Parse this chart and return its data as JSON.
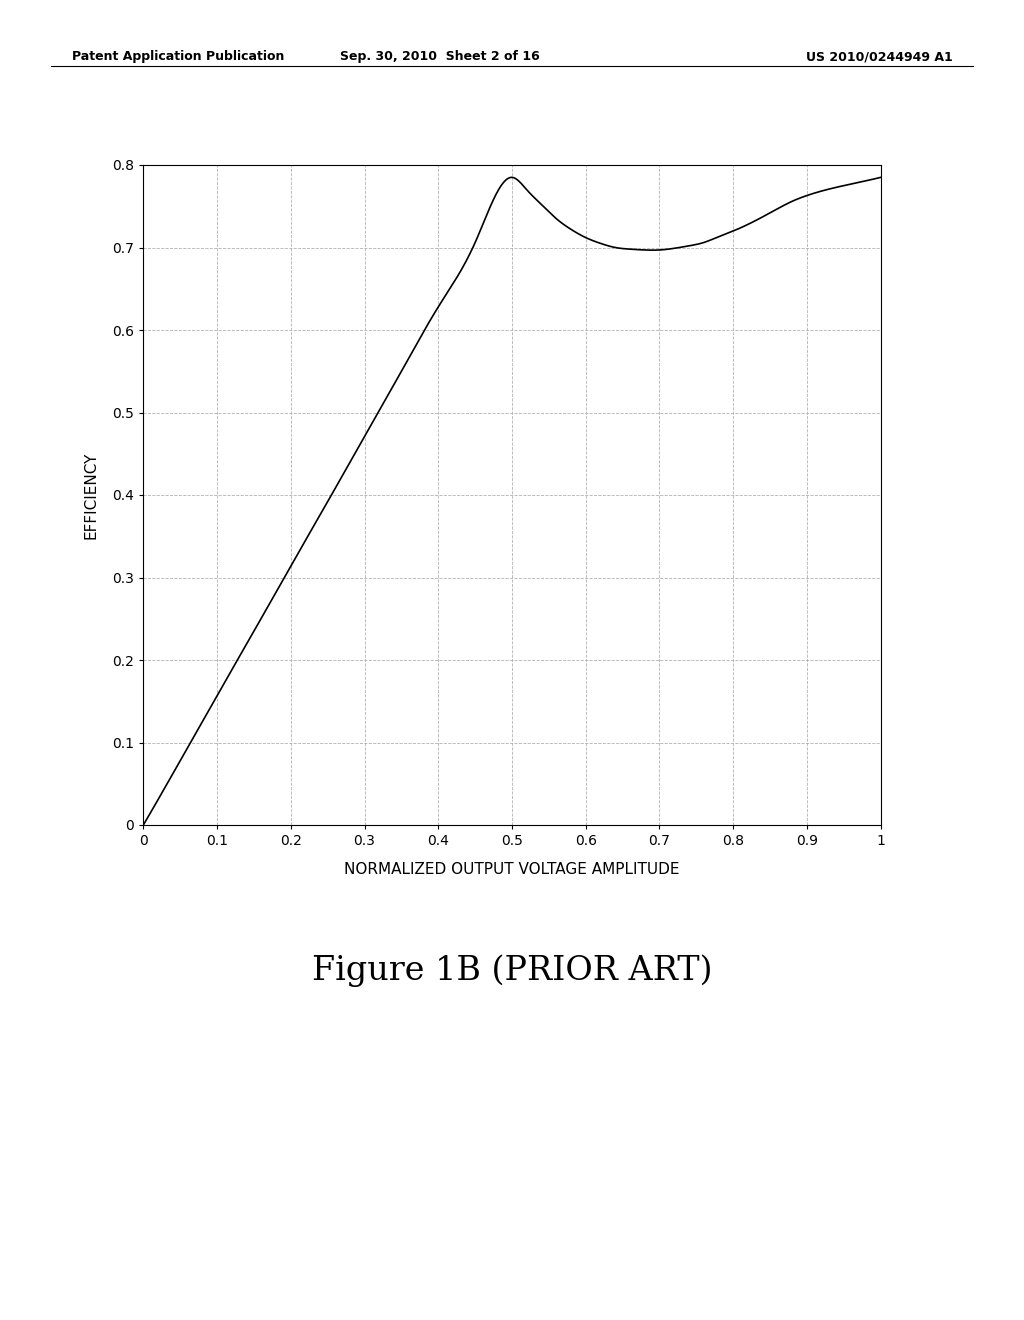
{
  "header_left": "Patent Application Publication",
  "header_mid": "Sep. 30, 2010  Sheet 2 of 16",
  "header_right": "US 2010/0244949 A1",
  "xlabel": "NORMALIZED OUTPUT VOLTAGE AMPLITUDE",
  "ylabel": "EFFICIENCY",
  "figure_label": "Figure 1B (PRIOR ART)",
  "xlim": [
    0,
    1
  ],
  "ylim": [
    0,
    0.8
  ],
  "xticks": [
    0,
    0.1,
    0.2,
    0.3,
    0.4,
    0.5,
    0.6,
    0.7,
    0.8,
    0.9,
    1
  ],
  "yticks": [
    0,
    0.1,
    0.2,
    0.3,
    0.4,
    0.5,
    0.6,
    0.7,
    0.8
  ],
  "line_color": "#000000",
  "grid_color": "#aaaaaa",
  "background_color": "#ffffff",
  "header_fontsize": 9,
  "axis_label_fontsize": 11,
  "tick_fontsize": 10,
  "figure_label_fontsize": 24,
  "curve_x": [
    0.0,
    0.05,
    0.1,
    0.15,
    0.2,
    0.25,
    0.3,
    0.35,
    0.4,
    0.45,
    0.5,
    0.52,
    0.54,
    0.56,
    0.58,
    0.6,
    0.62,
    0.64,
    0.66,
    0.68,
    0.7,
    0.72,
    0.74,
    0.76,
    0.78,
    0.8,
    0.82,
    0.85,
    0.88,
    0.9,
    0.95,
    1.0
  ],
  "curve_y": [
    0.0,
    0.078,
    0.157,
    0.235,
    0.314,
    0.392,
    0.471,
    0.55,
    0.628,
    0.706,
    0.785,
    0.77,
    0.752,
    0.735,
    0.722,
    0.712,
    0.705,
    0.7,
    0.698,
    0.697,
    0.697,
    0.699,
    0.702,
    0.706,
    0.713,
    0.72,
    0.728,
    0.742,
    0.756,
    0.763,
    0.775,
    0.785
  ]
}
